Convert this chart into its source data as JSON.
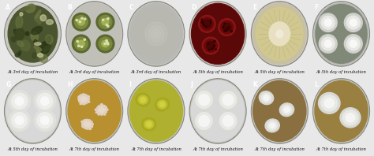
{
  "figure_bg": "#e8e8e8",
  "panel_bg": "#ffffff",
  "border_color": "#1a1a1a",
  "rows": 2,
  "cols": 6,
  "labels": [
    "A",
    "B",
    "C",
    "D",
    "E",
    "F",
    "G",
    "H",
    "I",
    "J",
    "K",
    "L"
  ],
  "captions": [
    "At 3rd day of incubation",
    "At 3rd day of incubation",
    "At 3rd day of incubation",
    "At 5th day of incubation",
    "At 5th day of incubation",
    "At 5th day of incubation",
    "At 5th day of incubation",
    "At 7th day of incubation",
    "At 7th day of incubation",
    "At 7th day of incubation",
    "At 7th day of incubation",
    "At 7th day of incubation"
  ],
  "panel_bg_colors": [
    "#1a1a1a",
    "#1a1a1a",
    "#1a1a1a",
    "#1a1a1a",
    "#1a1a1a",
    "#1a1a1a",
    "#1a1a1a",
    "#1a1a1a",
    "#1a1a1a",
    "#1a1a1a",
    "#1a1a1a",
    "#1a1a1a"
  ],
  "dish_bg_colors": [
    "#c8c8c0",
    "#c0c0b8",
    "#b8b8b4",
    "#6a1010",
    "#c8c0a0",
    "#b0b0b0",
    "#d8d8d8",
    "#b89030",
    "#b0b030",
    "#d8d8d8",
    "#8a7040",
    "#9a8040"
  ],
  "label_fontsize": 5.5,
  "caption_fontsize": 3.8
}
